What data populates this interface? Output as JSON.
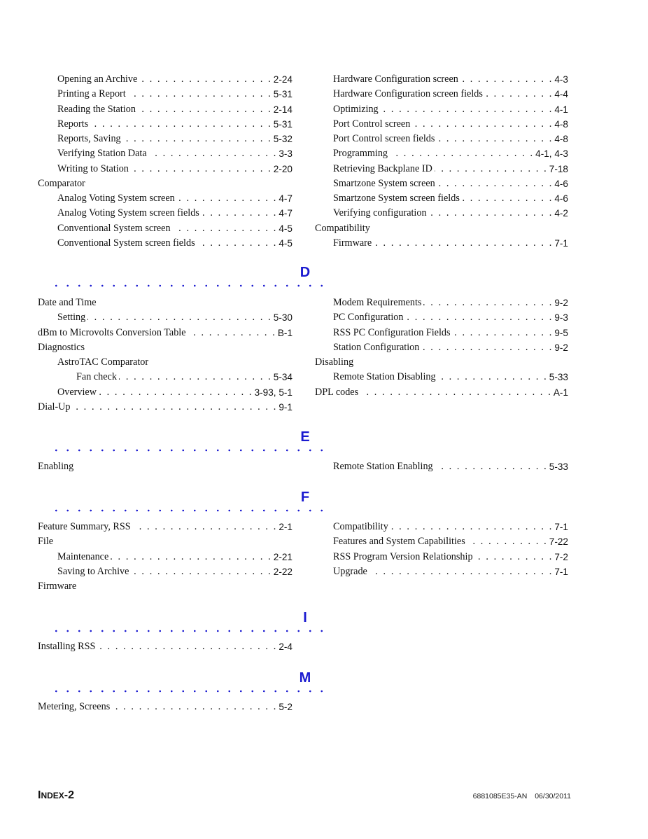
{
  "accent_color": "#1a1ad0",
  "sections": [
    {
      "letter": "",
      "left": [
        {
          "text": "Opening an Archive",
          "page": "2-24",
          "level": 1
        },
        {
          "text": "Printing a Report",
          "page": "5-31",
          "level": 1
        },
        {
          "text": "Reading the Station",
          "page": "2-14",
          "level": 1
        },
        {
          "text": "Reports",
          "page": "5-31",
          "level": 1
        },
        {
          "text": "Reports, Saving",
          "page": "5-32",
          "level": 1
        },
        {
          "text": "Verifying Station Data",
          "page": "3-3",
          "level": 1
        },
        {
          "text": "Writing to Station",
          "page": "2-20",
          "level": 1
        },
        {
          "text": "Comparator",
          "page": "",
          "level": 0
        },
        {
          "text": "Analog Voting System screen",
          "page": "4-7",
          "level": 1
        },
        {
          "text": "Analog Voting System screen fields",
          "page": "4-7",
          "level": 1
        },
        {
          "text": "Conventional System screen",
          "page": "4-5",
          "level": 1
        },
        {
          "text": "Conventional System screen fields",
          "page": "4-5",
          "level": 1
        }
      ],
      "right": [
        {
          "text": "Hardware Configuration screen",
          "page": "4-3",
          "level": 1
        },
        {
          "text": "Hardware Configuration screen fields",
          "page": "4-4",
          "level": 1
        },
        {
          "text": "Optimizing",
          "page": "4-1",
          "level": 1
        },
        {
          "text": "Port Control screen",
          "page": "4-8",
          "level": 1
        },
        {
          "text": "Port Control screen fields",
          "page": "4-8",
          "level": 1
        },
        {
          "text": "Programming",
          "page": "4-1, 4-3",
          "level": 1
        },
        {
          "text": "Retrieving Backplane ID",
          "page": "7-18",
          "level": 1
        },
        {
          "text": "Smartzone System screen",
          "page": "4-6",
          "level": 1
        },
        {
          "text": "Smartzone System screen fields",
          "page": "4-6",
          "level": 1
        },
        {
          "text": "Verifying configuration",
          "page": "4-2",
          "level": 1
        },
        {
          "text": "Compatibility",
          "page": "",
          "level": 0
        },
        {
          "text": "Firmware",
          "page": "7-1",
          "level": 1
        }
      ]
    },
    {
      "letter": "D",
      "left": [
        {
          "text": "Date and Time",
          "page": "",
          "level": 0
        },
        {
          "text": "Setting",
          "page": "5-30",
          "level": 1
        },
        {
          "text": "dBm to Microvolts Conversion Table",
          "page": "B-1",
          "level": 0
        },
        {
          "text": "Diagnostics",
          "page": "",
          "level": 0
        },
        {
          "text": "AstroTAC Comparator",
          "page": "",
          "level": 1
        },
        {
          "text": "Fan check",
          "page": "5-34",
          "level": 2
        },
        {
          "text": "Overview",
          "page": "3-93, 5-1",
          "level": 1
        },
        {
          "text": "Dial-Up",
          "page": "9-1",
          "level": 0
        }
      ],
      "right": [
        {
          "text": "Modem Requirements",
          "page": "9-2",
          "level": 1
        },
        {
          "text": "PC Configuration",
          "page": "9-3",
          "level": 1
        },
        {
          "text": "RSS PC Configuration Fields",
          "page": "9-5",
          "level": 1
        },
        {
          "text": "Station Configuration",
          "page": "9-2",
          "level": 1
        },
        {
          "text": "Disabling",
          "page": "",
          "level": 0
        },
        {
          "text": "Remote Station Disabling",
          "page": "5-33",
          "level": 1
        },
        {
          "text": "DPL codes",
          "page": "A-1",
          "level": 0
        }
      ]
    },
    {
      "letter": "E",
      "left": [
        {
          "text": "Enabling",
          "page": "",
          "level": 0
        }
      ],
      "right": [
        {
          "text": "Remote Station Enabling",
          "page": "5-33",
          "level": 1
        }
      ]
    },
    {
      "letter": "F",
      "left": [
        {
          "text": "Feature Summary, RSS",
          "page": "2-1",
          "level": 0
        },
        {
          "text": "File",
          "page": "",
          "level": 0
        },
        {
          "text": "Maintenance",
          "page": "2-21",
          "level": 1
        },
        {
          "text": "Saving to Archive",
          "page": "2-22",
          "level": 1
        },
        {
          "text": "Firmware",
          "page": "",
          "level": 0
        }
      ],
      "right": [
        {
          "text": "Compatibility",
          "page": "7-1",
          "level": 1
        },
        {
          "text": "Features and System Capabilities",
          "page": "7-22",
          "level": 1
        },
        {
          "text": "RSS Program Version Relationship",
          "page": "7-2",
          "level": 1
        },
        {
          "text": "Upgrade",
          "page": "7-1",
          "level": 1
        }
      ]
    },
    {
      "letter": "I",
      "left": [
        {
          "text": "Installing RSS",
          "page": "2-4",
          "level": 0
        }
      ],
      "right": []
    },
    {
      "letter": "M",
      "left": [
        {
          "text": "Metering, Screens",
          "page": "5-2",
          "level": 0
        }
      ],
      "right": []
    }
  ],
  "footer": {
    "page_label_first": "I",
    "page_label_rest": "NDEX",
    "page_label_number": "-2",
    "doc_number": "6881085E35-AN",
    "date": "06/30/2011"
  }
}
